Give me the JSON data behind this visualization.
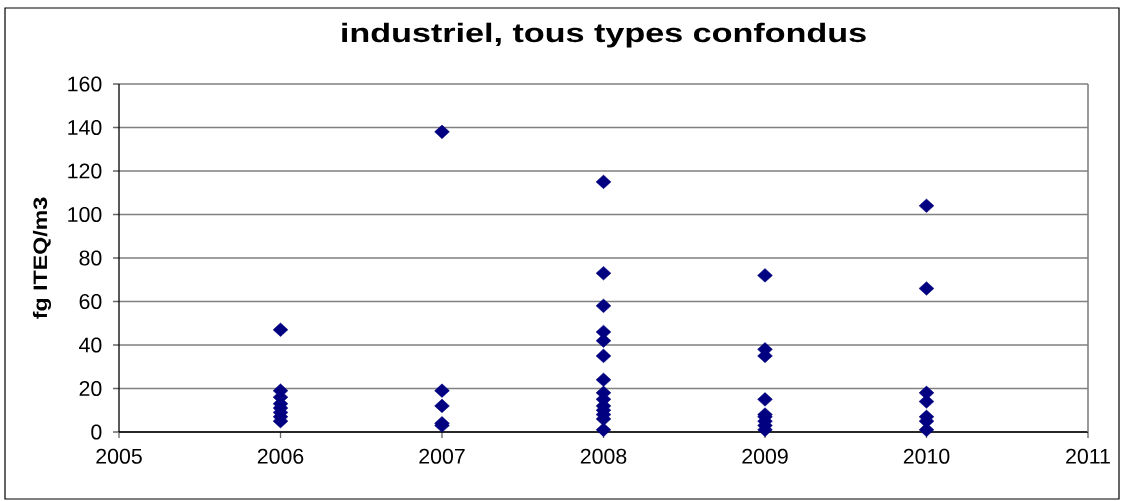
{
  "chart_data": {
    "type": "scatter",
    "title": "industriel, tous types confondus",
    "ylabel": "fg ITEQ/m3",
    "x": [
      2006,
      2006,
      2006,
      2006,
      2006,
      2006,
      2006,
      2006,
      2007,
      2007,
      2007,
      2007,
      2007,
      2008,
      2008,
      2008,
      2008,
      2008,
      2008,
      2008,
      2008,
      2008,
      2008,
      2008,
      2008,
      2008,
      2008,
      2009,
      2009,
      2009,
      2009,
      2009,
      2009,
      2009,
      2009,
      2009,
      2010,
      2010,
      2010,
      2010,
      2010,
      2010,
      2010
    ],
    "values": [
      47,
      19,
      16,
      13,
      11,
      9,
      7,
      5,
      138,
      19,
      12,
      4,
      3,
      115,
      73,
      58,
      46,
      42,
      35,
      24,
      18,
      15,
      12,
      10,
      8,
      6,
      1,
      72,
      38,
      35,
      15,
      8,
      7,
      5,
      3,
      1,
      104,
      66,
      18,
      14,
      7,
      5,
      1
    ],
    "color": "#000080",
    "marker": "diamond",
    "xlim": [
      2005,
      2011
    ],
    "xticks": [
      2005,
      2006,
      2007,
      2008,
      2009,
      2010,
      2011
    ],
    "ylim": [
      0,
      160
    ],
    "yticks": [
      0,
      20,
      40,
      60,
      80,
      100,
      120,
      140,
      160
    ],
    "grid": "y"
  }
}
